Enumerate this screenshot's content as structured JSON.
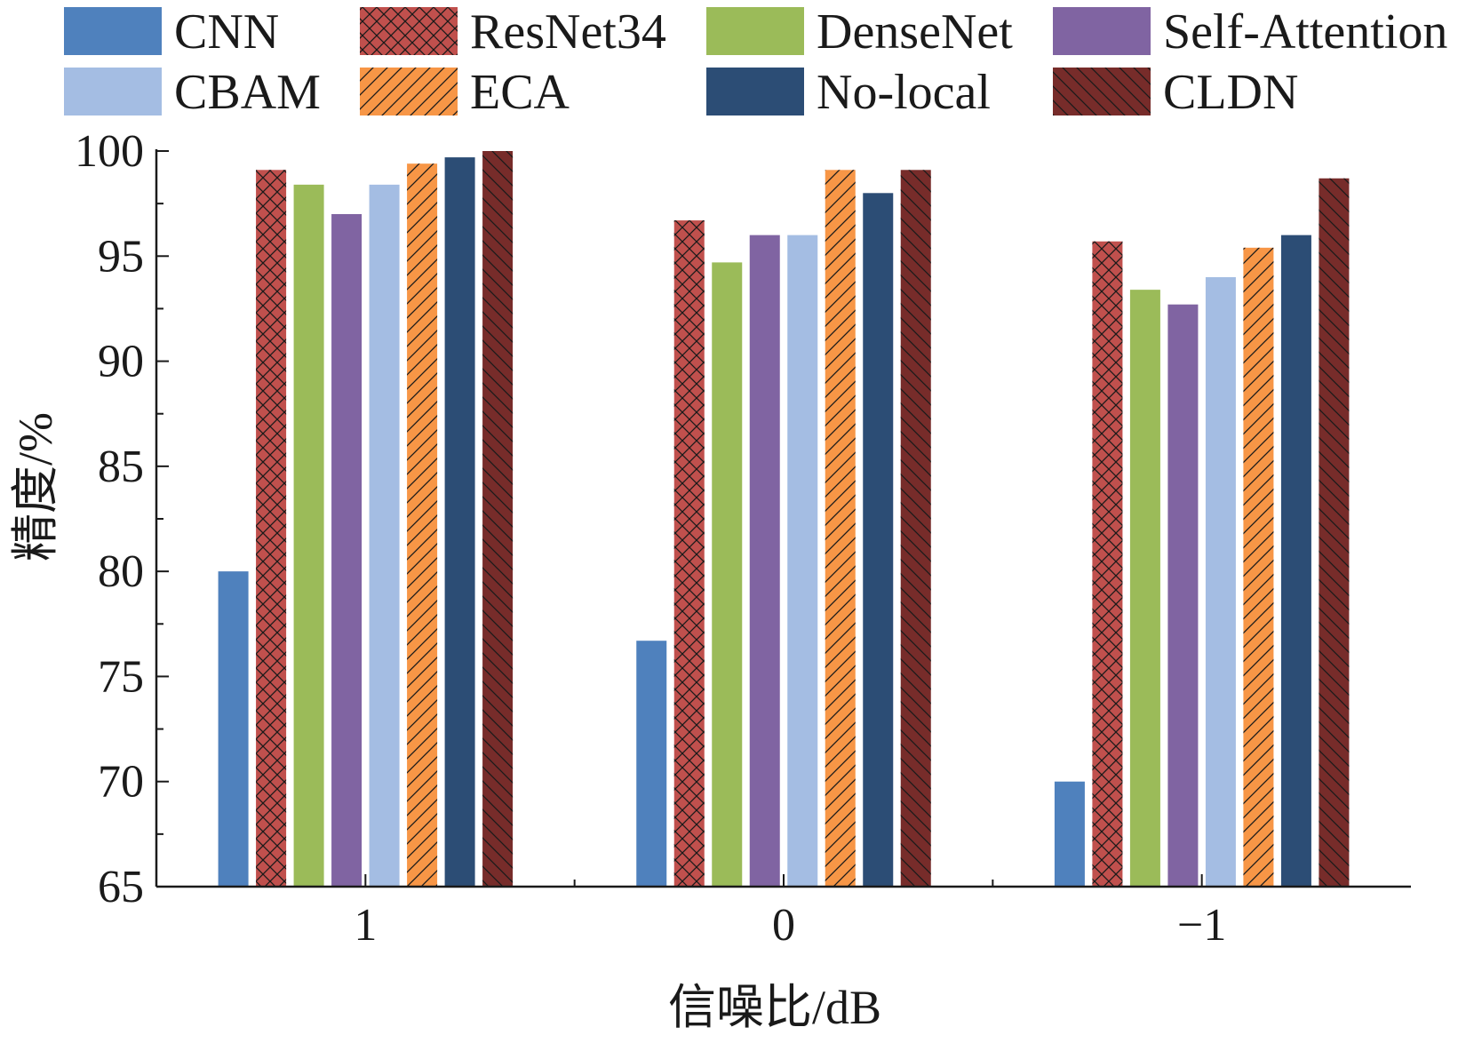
{
  "chart_data": {
    "type": "bar",
    "xlabel": "信噪比/dB",
    "ylabel": "精度/%",
    "categories": [
      "1",
      "0",
      "−1"
    ],
    "ylim": [
      65,
      100
    ],
    "yticks": [
      "65",
      "70",
      "75",
      "80",
      "85",
      "90",
      "95",
      "100"
    ],
    "grid": false,
    "legend_position": "top",
    "series": [
      {
        "name": "CNN",
        "color": "#4f81bd",
        "pattern": "solid",
        "values": [
          80.0,
          76.7,
          70.0
        ]
      },
      {
        "name": "ResNet34",
        "color": "#c0504d",
        "pattern": "crosshatch",
        "values": [
          99.1,
          96.7,
          95.7
        ]
      },
      {
        "name": "DenseNet",
        "color": "#9bbb59",
        "pattern": "solid",
        "values": [
          98.4,
          94.7,
          93.4
        ]
      },
      {
        "name": "Self-Attention",
        "color": "#8064a2",
        "pattern": "solid",
        "values": [
          97.0,
          96.0,
          92.7
        ]
      },
      {
        "name": "CBAM",
        "color": "#a4bde3",
        "pattern": "solid",
        "values": [
          98.4,
          96.0,
          94.0
        ]
      },
      {
        "name": "ECA",
        "color": "#f79646",
        "pattern": "forward-diagonal",
        "values": [
          99.4,
          99.1,
          95.4
        ]
      },
      {
        "name": "No-local",
        "color": "#2c4d75",
        "pattern": "solid",
        "values": [
          99.7,
          98.0,
          96.0
        ]
      },
      {
        "name": "CLDN",
        "color": "#772c2a",
        "pattern": "back-diagonal",
        "values": [
          100.0,
          99.1,
          98.7
        ]
      }
    ]
  }
}
